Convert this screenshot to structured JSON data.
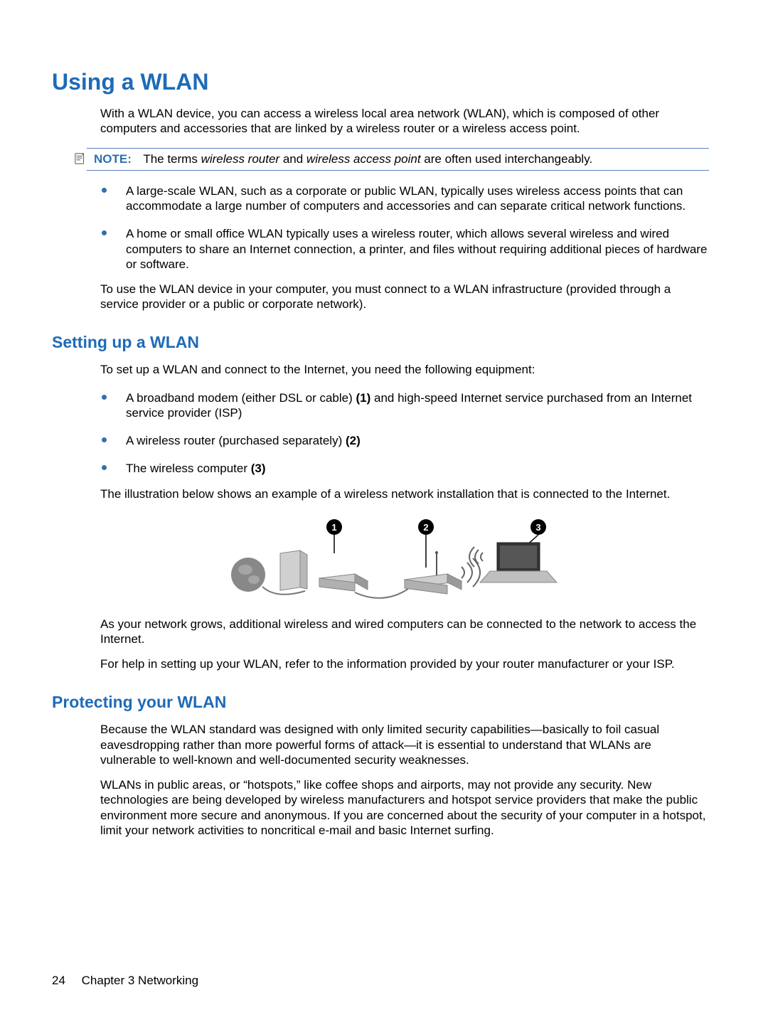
{
  "colors": {
    "heading": "#1e6bb8",
    "note_border": "#5b7cc0",
    "note_label": "#2f6fae",
    "bullet": "#2f6fae",
    "text": "#000000",
    "background": "#ffffff"
  },
  "heading1": "Using a WLAN",
  "intro": "With a WLAN device, you can access a wireless local area network (WLAN), which is composed of other computers and accessories that are linked by a wireless router or a wireless access point.",
  "note": {
    "label": "NOTE:",
    "text_pre": "The terms ",
    "term1": "wireless router",
    "text_mid": " and ",
    "term2": "wireless access point",
    "text_post": " are often used interchangeably."
  },
  "bullets1": [
    "A large-scale WLAN, such as a corporate or public WLAN, typically uses wireless access points that can accommodate a large number of computers and accessories and can separate critical network functions.",
    "A home or small office WLAN typically uses a wireless router, which allows several wireless and wired computers to share an Internet connection, a printer, and files without requiring additional pieces of hardware or software."
  ],
  "para_after_bullets1": "To use the WLAN device in your computer, you must connect to a WLAN infrastructure (provided through a service provider or a public or corporate network).",
  "heading2a": "Setting up a WLAN",
  "setup_intro": "To set up a WLAN and connect to the Internet, you need the following equipment:",
  "bullets2": [
    {
      "pre": "A broadband modem (either DSL or cable) ",
      "bold": "(1)",
      "post": " and high-speed Internet service purchased from an Internet service provider (ISP)"
    },
    {
      "pre": "A wireless router (purchased separately) ",
      "bold": "(2)",
      "post": ""
    },
    {
      "pre": "The wireless computer ",
      "bold": "(3)",
      "post": ""
    }
  ],
  "illus_intro": "The illustration below shows an example of a wireless network installation that is connected to the Internet.",
  "illustration": {
    "callouts": [
      "1",
      "2",
      "3"
    ],
    "callout_bg": "#000000",
    "callout_fg": "#ffffff"
  },
  "after_illus1": "As your network grows, additional wireless and wired computers can be connected to the network to access the Internet.",
  "after_illus2": "For help in setting up your WLAN, refer to the information provided by your router manufacturer or your ISP.",
  "heading2b": "Protecting your WLAN",
  "protect1": "Because the WLAN standard was designed with only limited security capabilities—basically to foil casual eavesdropping rather than more powerful forms of attack—it is essential to understand that WLANs are vulnerable to well-known and well-documented security weaknesses.",
  "protect2": "WLANs in public areas, or “hotspots,” like coffee shops and airports, may not provide any security. New technologies are being developed by wireless manufacturers and hotspot service providers that make the public environment more secure and anonymous. If you are concerned about the security of your computer in a hotspot, limit your network activities to noncritical e-mail and basic Internet surfing.",
  "footer": {
    "page": "24",
    "chapter": "Chapter 3   Networking"
  }
}
